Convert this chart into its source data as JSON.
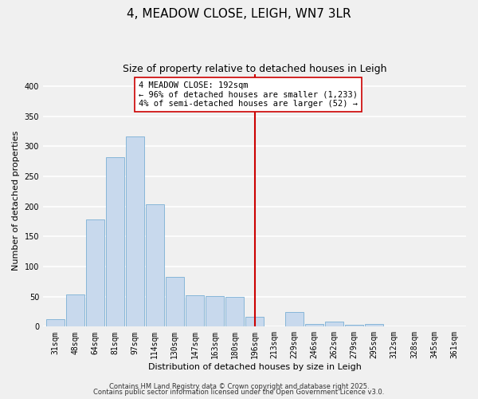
{
  "title": "4, MEADOW CLOSE, LEIGH, WN7 3LR",
  "subtitle": "Size of property relative to detached houses in Leigh",
  "xlabel": "Distribution of detached houses by size in Leigh",
  "ylabel": "Number of detached properties",
  "bar_color": "#c8d9ed",
  "bar_edge_color": "#7aafd4",
  "bin_labels": [
    "31sqm",
    "48sqm",
    "64sqm",
    "81sqm",
    "97sqm",
    "114sqm",
    "130sqm",
    "147sqm",
    "163sqm",
    "180sqm",
    "196sqm",
    "213sqm",
    "229sqm",
    "246sqm",
    "262sqm",
    "279sqm",
    "295sqm",
    "312sqm",
    "328sqm",
    "345sqm",
    "361sqm"
  ],
  "bar_heights": [
    13,
    53,
    178,
    282,
    317,
    204,
    83,
    52,
    51,
    50,
    17,
    0,
    24,
    5,
    9,
    3,
    5,
    0,
    0,
    0,
    0
  ],
  "vline_x": 10.0,
  "vline_color": "#cc0000",
  "annotation_text": "4 MEADOW CLOSE: 192sqm\n← 96% of detached houses are smaller (1,233)\n4% of semi-detached houses are larger (52) →",
  "annotation_box_color": "#ffffff",
  "annotation_box_edge": "#cc0000",
  "ylim": [
    0,
    420
  ],
  "yticks": [
    0,
    50,
    100,
    150,
    200,
    250,
    300,
    350,
    400
  ],
  "footer_line1": "Contains HM Land Registry data © Crown copyright and database right 2025.",
  "footer_line2": "Contains public sector information licensed under the Open Government Licence v3.0.",
  "background_color": "#f0f0f0",
  "grid_color": "#ffffff",
  "title_fontsize": 11,
  "subtitle_fontsize": 9,
  "axis_label_fontsize": 8,
  "tick_fontsize": 7,
  "annotation_fontsize": 7.5,
  "footer_fontsize": 6
}
